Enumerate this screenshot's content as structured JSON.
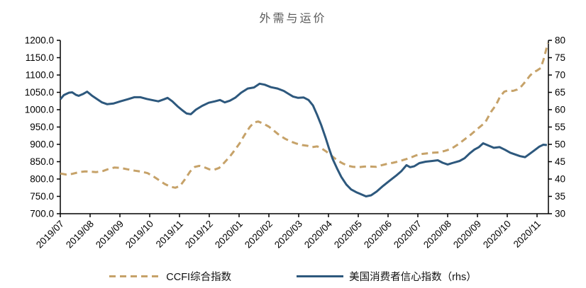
{
  "title": "外需与运价",
  "colors": {
    "ccfi_line": "#C6A269",
    "confidence_line": "#2D587D",
    "axis": "#000000",
    "title_text": "#595959"
  },
  "chart_data": {
    "type": "line",
    "title": "外需与运价",
    "x_axis": {
      "labels": [
        "2019/07",
        "2019/08",
        "2019/09",
        "2019/10",
        "2019/11",
        "2019/12",
        "2020/01",
        "2020/02",
        "2020/03",
        "2020/04",
        "2020/05",
        "2020/06",
        "2020/07",
        "2020/08",
        "2020/09",
        "2020/10",
        "2020/11"
      ],
      "label_rotation_deg": -45
    },
    "left_axis": {
      "min": 700,
      "max": 1200,
      "step": 50,
      "tick_labels": [
        "1200.0",
        "1150.0",
        "1100.0",
        "1050.0",
        "1000.0",
        "950.0",
        "900.0",
        "850.0",
        "800.0",
        "750.0",
        "700.0"
      ]
    },
    "right_axis": {
      "min": 30,
      "max": 80,
      "step": 5,
      "tick_labels": [
        "80",
        "75",
        "70",
        "65",
        "60",
        "55",
        "50",
        "45",
        "40",
        "35",
        "30"
      ]
    },
    "grid": false,
    "legend_position": "bottom",
    "series": [
      {
        "name": "CCFI综合指数",
        "axis": "left",
        "style": "dashed",
        "color": "#C6A269",
        "points": [
          [
            0,
            816
          ],
          [
            0.19,
            813
          ],
          [
            0.4,
            815
          ],
          [
            0.64,
            820
          ],
          [
            0.83,
            822
          ],
          [
            1.02,
            821
          ],
          [
            1.21,
            820
          ],
          [
            1.43,
            823
          ],
          [
            1.62,
            829
          ],
          [
            1.81,
            833
          ],
          [
            2.02,
            832
          ],
          [
            2.26,
            828
          ],
          [
            2.5,
            824
          ],
          [
            2.74,
            821
          ],
          [
            2.93,
            817
          ],
          [
            3.12,
            808
          ],
          [
            3.31,
            797
          ],
          [
            3.5,
            786
          ],
          [
            3.69,
            778
          ],
          [
            3.86,
            775
          ],
          [
            4.02,
            780
          ],
          [
            4.19,
            800
          ],
          [
            4.36,
            822
          ],
          [
            4.52,
            835
          ],
          [
            4.67,
            838
          ],
          [
            4.83,
            834
          ],
          [
            5.0,
            828
          ],
          [
            5.17,
            827
          ],
          [
            5.33,
            832
          ],
          [
            5.5,
            847
          ],
          [
            5.69,
            865
          ],
          [
            5.86,
            884
          ],
          [
            6.02,
            903
          ],
          [
            6.19,
            928
          ],
          [
            6.36,
            950
          ],
          [
            6.5,
            963
          ],
          [
            6.64,
            966
          ],
          [
            6.81,
            960
          ],
          [
            7.0,
            951
          ],
          [
            7.19,
            938
          ],
          [
            7.36,
            926
          ],
          [
            7.55,
            916
          ],
          [
            7.74,
            908
          ],
          [
            7.93,
            902
          ],
          [
            8.12,
            898
          ],
          [
            8.29,
            896
          ],
          [
            8.45,
            892
          ],
          [
            8.62,
            894
          ],
          [
            8.76,
            889
          ],
          [
            8.93,
            879
          ],
          [
            9.12,
            866
          ],
          [
            9.31,
            853
          ],
          [
            9.5,
            844
          ],
          [
            9.67,
            838
          ],
          [
            9.83,
            835
          ],
          [
            10.02,
            834
          ],
          [
            10.21,
            836
          ],
          [
            10.4,
            836
          ],
          [
            10.6,
            835
          ],
          [
            10.79,
            840
          ],
          [
            10.98,
            844
          ],
          [
            11.17,
            847
          ],
          [
            11.36,
            851
          ],
          [
            11.55,
            856
          ],
          [
            11.74,
            861
          ],
          [
            11.93,
            868
          ],
          [
            12.12,
            872
          ],
          [
            12.31,
            874
          ],
          [
            12.52,
            876
          ],
          [
            12.71,
            877
          ],
          [
            12.9,
            881
          ],
          [
            13.12,
            887
          ],
          [
            13.33,
            899
          ],
          [
            13.55,
            913
          ],
          [
            13.79,
            929
          ],
          [
            14.02,
            946
          ],
          [
            14.26,
            963
          ],
          [
            14.45,
            993
          ],
          [
            14.62,
            1013
          ],
          [
            14.76,
            1038
          ],
          [
            14.9,
            1052
          ],
          [
            15.05,
            1056
          ],
          [
            15.19,
            1054
          ],
          [
            15.33,
            1058
          ],
          [
            15.48,
            1068
          ],
          [
            15.62,
            1082
          ],
          [
            15.76,
            1098
          ],
          [
            15.88,
            1108
          ],
          [
            16.0,
            1113
          ],
          [
            16.12,
            1120
          ],
          [
            16.21,
            1142
          ],
          [
            16.29,
            1168
          ],
          [
            16.36,
            1192
          ]
        ]
      },
      {
        "name": "美国消费者信心指数（rhs）",
        "axis": "right",
        "style": "solid",
        "color": "#2D587D",
        "points": [
          [
            0,
            63.0
          ],
          [
            0.12,
            64.2
          ],
          [
            0.29,
            64.9
          ],
          [
            0.4,
            65.0
          ],
          [
            0.52,
            64.3
          ],
          [
            0.62,
            64.0
          ],
          [
            0.76,
            64.5
          ],
          [
            0.9,
            65.2
          ],
          [
            1.07,
            64.0
          ],
          [
            1.24,
            63.0
          ],
          [
            1.4,
            62.1
          ],
          [
            1.57,
            61.6
          ],
          [
            1.79,
            61.8
          ],
          [
            2.02,
            62.4
          ],
          [
            2.26,
            63.0
          ],
          [
            2.48,
            63.6
          ],
          [
            2.69,
            63.6
          ],
          [
            2.9,
            63.1
          ],
          [
            3.07,
            62.8
          ],
          [
            3.29,
            62.4
          ],
          [
            3.48,
            63.0
          ],
          [
            3.6,
            63.4
          ],
          [
            3.76,
            62.4
          ],
          [
            3.93,
            61.0
          ],
          [
            4.1,
            59.8
          ],
          [
            4.24,
            58.9
          ],
          [
            4.38,
            58.7
          ],
          [
            4.55,
            60.0
          ],
          [
            4.76,
            61.1
          ],
          [
            4.98,
            62.0
          ],
          [
            5.19,
            62.4
          ],
          [
            5.36,
            62.8
          ],
          [
            5.52,
            62.1
          ],
          [
            5.69,
            62.6
          ],
          [
            5.88,
            63.5
          ],
          [
            6.07,
            64.9
          ],
          [
            6.29,
            66.1
          ],
          [
            6.5,
            66.4
          ],
          [
            6.69,
            67.5
          ],
          [
            6.86,
            67.2
          ],
          [
            7.07,
            66.5
          ],
          [
            7.29,
            66.1
          ],
          [
            7.5,
            65.4
          ],
          [
            7.67,
            64.5
          ],
          [
            7.81,
            63.8
          ],
          [
            7.98,
            63.4
          ],
          [
            8.17,
            63.5
          ],
          [
            8.33,
            62.8
          ],
          [
            8.48,
            61.2
          ],
          [
            8.62,
            58.5
          ],
          [
            8.76,
            55.5
          ],
          [
            8.9,
            52.0
          ],
          [
            9.02,
            48.8
          ],
          [
            9.14,
            45.8
          ],
          [
            9.29,
            43.0
          ],
          [
            9.43,
            40.6
          ],
          [
            9.6,
            38.4
          ],
          [
            9.76,
            37.0
          ],
          [
            9.93,
            36.2
          ],
          [
            10.1,
            35.6
          ],
          [
            10.26,
            35.0
          ],
          [
            10.43,
            35.3
          ],
          [
            10.62,
            36.4
          ],
          [
            10.83,
            38.0
          ],
          [
            11.05,
            39.5
          ],
          [
            11.26,
            40.9
          ],
          [
            11.45,
            42.3
          ],
          [
            11.62,
            44.0
          ],
          [
            11.74,
            43.4
          ],
          [
            11.88,
            43.7
          ],
          [
            12.05,
            44.6
          ],
          [
            12.26,
            45.0
          ],
          [
            12.48,
            45.2
          ],
          [
            12.67,
            45.4
          ],
          [
            12.83,
            44.7
          ],
          [
            13.0,
            44.2
          ],
          [
            13.19,
            44.7
          ],
          [
            13.4,
            45.2
          ],
          [
            13.57,
            46.0
          ],
          [
            13.74,
            47.4
          ],
          [
            13.9,
            48.5
          ],
          [
            14.05,
            49.2
          ],
          [
            14.19,
            50.3
          ],
          [
            14.36,
            49.7
          ],
          [
            14.55,
            49.0
          ],
          [
            14.74,
            49.2
          ],
          [
            14.93,
            48.4
          ],
          [
            15.1,
            47.6
          ],
          [
            15.26,
            47.1
          ],
          [
            15.43,
            46.6
          ],
          [
            15.6,
            46.3
          ],
          [
            15.76,
            47.3
          ],
          [
            15.9,
            48.2
          ],
          [
            16.07,
            49.3
          ],
          [
            16.21,
            49.9
          ],
          [
            16.33,
            49.8
          ]
        ]
      }
    ]
  },
  "legend": {
    "ccfi_label": "CCFI综合指数",
    "confidence_label": "美国消费者信心指数（rhs）"
  }
}
